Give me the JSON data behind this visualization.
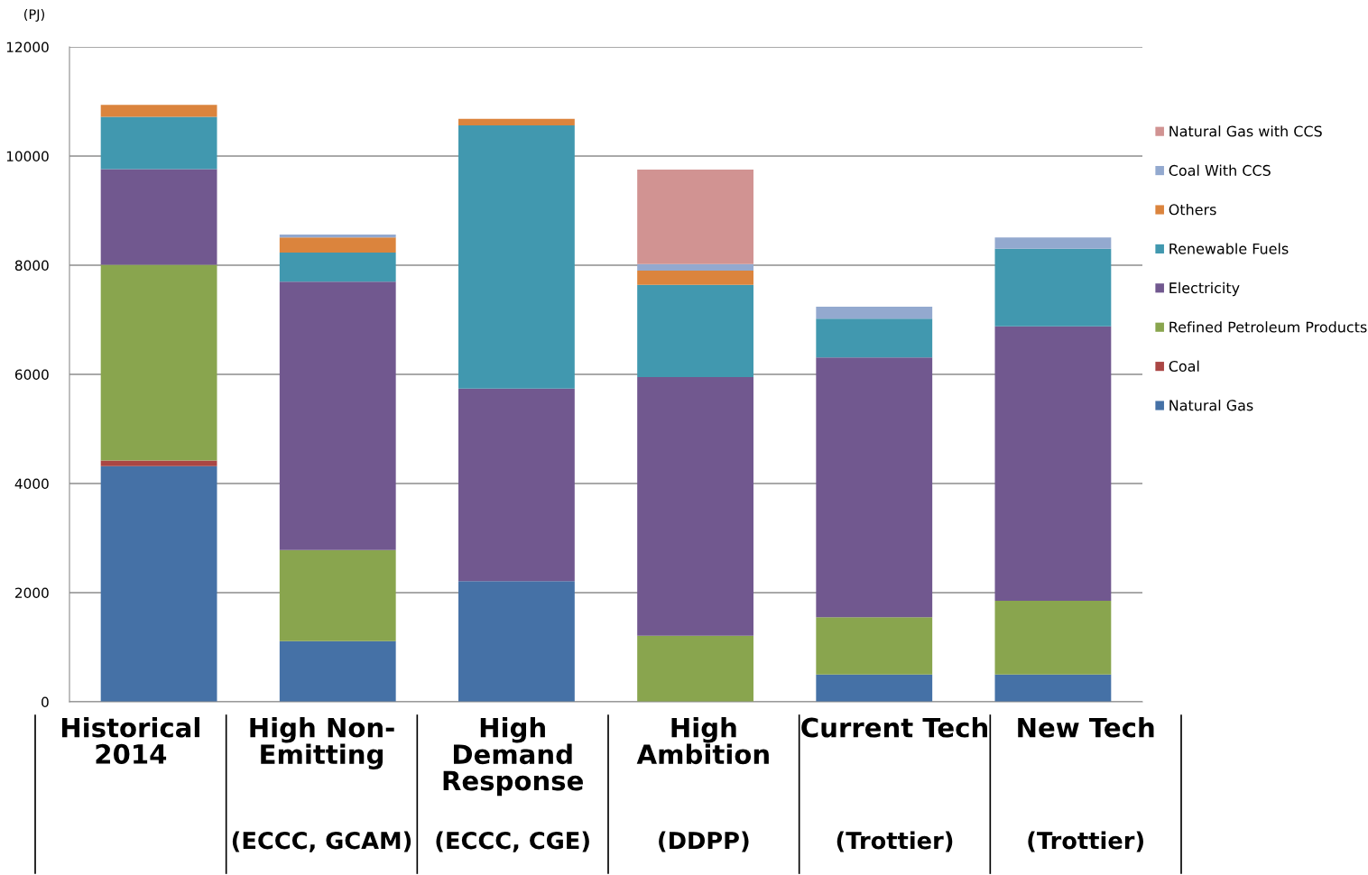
{
  "chart_data": {
    "type": "bar",
    "stacked": true,
    "ylabel": "(PJ)",
    "categories": [
      "Historical\n2014",
      "High Non-\nEmitting\n\n(ECCC, GCAM)",
      "High\nDemand\nResponse\n\n(ECCC, CGE)",
      "High\nAmbition\n\n(DDPP)",
      "Current Tech\n\n(Trottier)",
      "New Tech\n\n(Trottier)"
    ],
    "series": [
      {
        "name": "Natural Gas",
        "color": "#4571a6",
        "values": [
          4320,
          1110,
          2210,
          0,
          500,
          500
        ]
      },
      {
        "name": "Coal",
        "color": "#aa4644",
        "values": [
          100,
          0,
          0,
          0,
          0,
          0
        ]
      },
      {
        "name": "Refined Petroleum Products",
        "color": "#89a54e",
        "values": [
          3590,
          1670,
          0,
          1210,
          1050,
          1350
        ]
      },
      {
        "name": "Electricity",
        "color": "#71588f",
        "values": [
          1750,
          4920,
          3530,
          4740,
          4760,
          5030
        ]
      },
      {
        "name": "Renewable Fuels",
        "color": "#4198af",
        "values": [
          960,
          530,
          4820,
          1690,
          710,
          1420
        ]
      },
      {
        "name": "Others",
        "color": "#db843d",
        "values": [
          220,
          280,
          120,
          260,
          0,
          0
        ]
      },
      {
        "name": "Coal With CCS",
        "color": "#93a9cf",
        "values": [
          0,
          50,
          0,
          120,
          220,
          210
        ]
      },
      {
        "name": "Natural Gas with CCS",
        "color": "#d19392",
        "values": [
          0,
          0,
          0,
          1730,
          0,
          0
        ]
      }
    ],
    "ylim": [
      0,
      12000
    ],
    "yticks": [
      0,
      2000,
      4000,
      6000,
      8000,
      10000,
      12000
    ],
    "grid": "y",
    "legend": "right"
  }
}
